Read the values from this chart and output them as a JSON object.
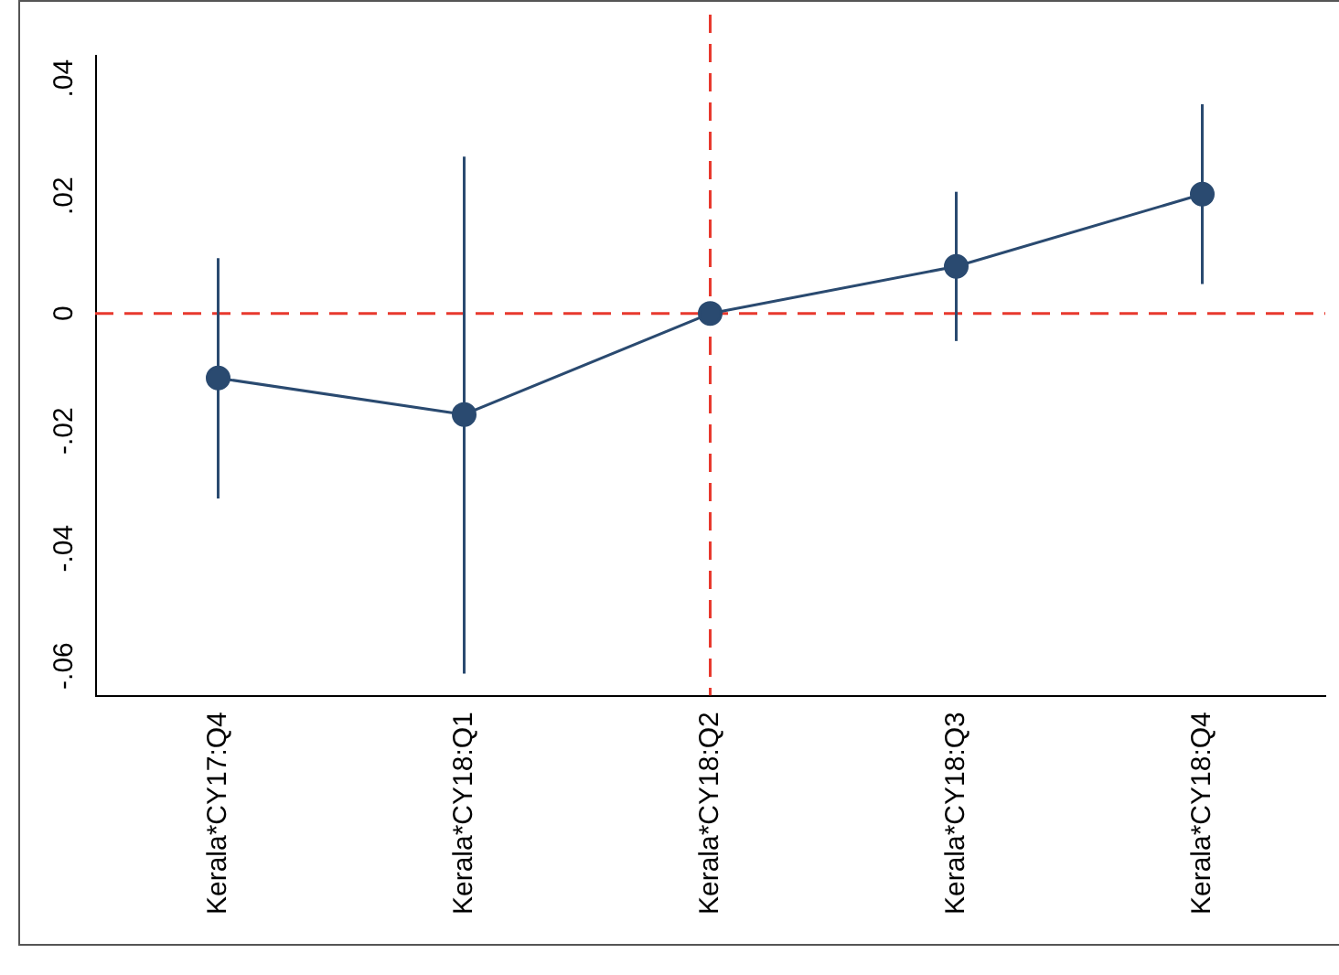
{
  "chart_data": {
    "type": "line",
    "categories": [
      "Kerala*CY17:Q4",
      "Kerala*CY18:Q1",
      "Kerala*CY18:Q2",
      "Kerala*CY18:Q3",
      "Kerala*CY18:Q4"
    ],
    "series": [
      {
        "color": "#2a4a70",
        "values": [
          -0.011,
          -0.0172,
          0,
          0.008,
          0.0203
        ],
        "errors": [
          [
            -0.0315,
            0.0094
          ],
          [
            -0.0613,
            0.0267
          ],
          null,
          [
            -0.0047,
            0.0207
          ],
          [
            0.005,
            0.0356
          ]
        ]
      }
    ],
    "ylim": [
      -0.065,
      0.044
    ],
    "yticks": [
      {
        "value": -0.06,
        "label": "-.06"
      },
      {
        "value": -0.04,
        "label": "-.04"
      },
      {
        "value": -0.02,
        "label": "-.02"
      },
      0,
      {
        "value": 0.02,
        "label": ".02"
      },
      {
        "value": 0.04,
        "label": ".04"
      }
    ],
    "ref_lines": [
      {
        "axis": "y",
        "value": 0,
        "color": "#e8392e",
        "line_style": "dashed"
      },
      {
        "axis": "x",
        "value": "Kerala*CY18:Q2",
        "color": "#e8392e",
        "line_style": "dashed"
      }
    ],
    "marker": "circle",
    "grid": false,
    "legend": false
  }
}
